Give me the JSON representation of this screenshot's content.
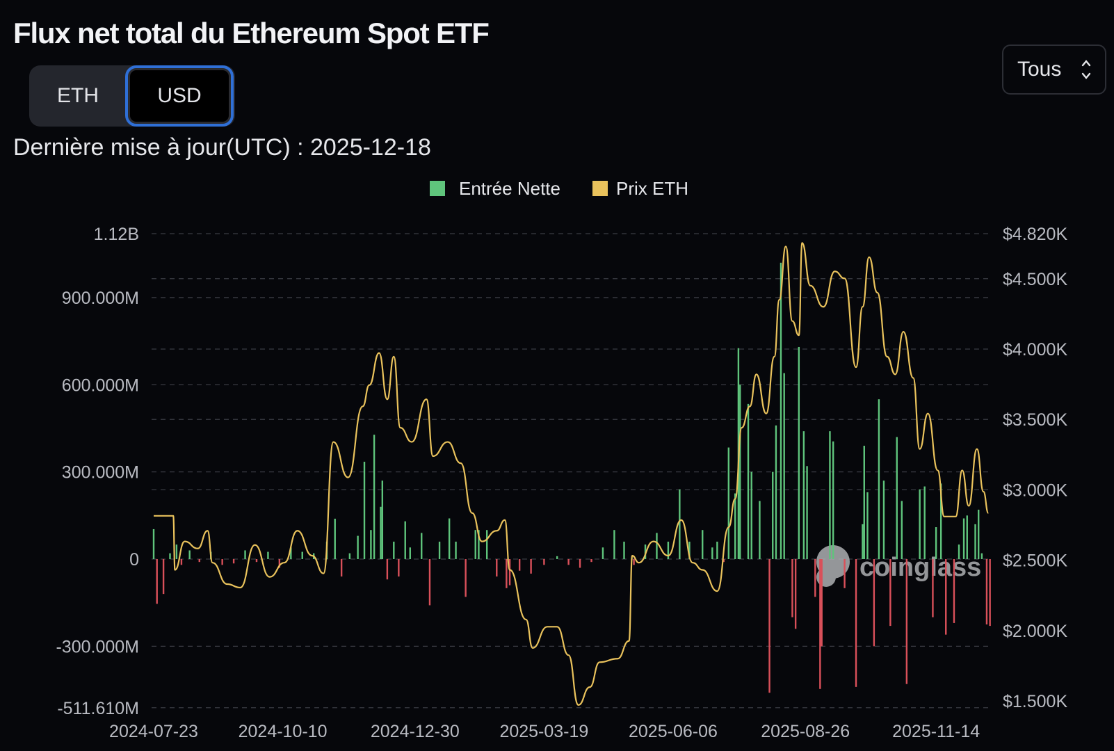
{
  "header": {
    "title": "Flux net total du Ethereum Spot ETF",
    "toggle": {
      "eth": "ETH",
      "usd": "USD",
      "selected": "USD"
    },
    "updated": "Dernière mise à jour(UTC) : 2025-12-18",
    "range_select": "Tous"
  },
  "watermark": "coinglass",
  "colors": {
    "inflow": "#5fc47c",
    "outflow": "#d9505a",
    "price": "#e9c25c",
    "background": "#06070b",
    "selected_border": "#2f6fd6"
  },
  "chart_data": {
    "type": "bar+line",
    "legend": {
      "position": "top-center",
      "items": [
        "Entrée Nette",
        "Prix ETH"
      ]
    },
    "grid": true,
    "left_axis": {
      "ticks": [
        "1.12B",
        "900.000M",
        "600.000M",
        "300.000M",
        "0",
        "-300.000M",
        "-511.610M"
      ],
      "tick_values": [
        1120,
        900,
        600,
        300,
        0,
        -300,
        -511.61
      ],
      "unit": "M USD",
      "range": [
        -511.61,
        1120
      ]
    },
    "right_axis": {
      "ticks": [
        "$4.820K",
        "$4.500K",
        "$4.000K",
        "$3.500K",
        "$3.000K",
        "$2.500K",
        "$2.000K",
        "$1.500K"
      ],
      "tick_values": [
        4820,
        4500,
        4000,
        3500,
        3000,
        2500,
        2000,
        1500
      ],
      "range": [
        1500,
        4820
      ]
    },
    "x_ticks": [
      "2024-07-23",
      "2024-10-10",
      "2024-12-30",
      "2025-03-19",
      "2025-06-06",
      "2025-08-26",
      "2025-11-14"
    ],
    "x_range": [
      "2024-07-23",
      "2025-12-18"
    ],
    "series": [
      {
        "name": "Entrée Nette",
        "type": "bar",
        "unit": "M USD",
        "points": [
          [
            "2024-07-23",
            103
          ],
          [
            "2024-07-25",
            -154
          ],
          [
            "2024-07-29",
            -120
          ],
          [
            "2024-08-02",
            20
          ],
          [
            "2024-08-06",
            50
          ],
          [
            "2024-08-09",
            -20
          ],
          [
            "2024-08-14",
            30
          ],
          [
            "2024-08-20",
            -10
          ],
          [
            "2024-08-27",
            25
          ],
          [
            "2024-09-03",
            -20
          ],
          [
            "2024-09-10",
            -15
          ],
          [
            "2024-09-17",
            30
          ],
          [
            "2024-09-24",
            -10
          ],
          [
            "2024-10-01",
            25
          ],
          [
            "2024-10-08",
            -30
          ],
          [
            "2024-10-15",
            40
          ],
          [
            "2024-10-22",
            25
          ],
          [
            "2024-10-29",
            20
          ],
          [
            "2024-11-06",
            60
          ],
          [
            "2024-11-11",
            139
          ],
          [
            "2024-11-15",
            -60
          ],
          [
            "2024-11-20",
            20
          ],
          [
            "2024-11-25",
            80
          ],
          [
            "2024-11-29",
            335
          ],
          [
            "2024-12-03",
            100
          ],
          [
            "2024-12-05",
            428
          ],
          [
            "2024-12-09",
            180
          ],
          [
            "2024-12-10",
            270
          ],
          [
            "2024-12-13",
            -70
          ],
          [
            "2024-12-17",
            60
          ],
          [
            "2024-12-20",
            -60
          ],
          [
            "2024-12-24",
            130
          ],
          [
            "2024-12-27",
            40
          ],
          [
            "2025-01-03",
            90
          ],
          [
            "2025-01-08",
            -159
          ],
          [
            "2025-01-14",
            60
          ],
          [
            "2025-01-20",
            140
          ],
          [
            "2025-01-24",
            60
          ],
          [
            "2025-01-30",
            -130
          ],
          [
            "2025-02-05",
            100
          ],
          [
            "2025-02-07",
            100
          ],
          [
            "2025-02-12",
            100
          ],
          [
            "2025-02-18",
            -60
          ],
          [
            "2025-02-24",
            -100
          ],
          [
            "2025-02-26",
            -90
          ],
          [
            "2025-03-04",
            -40
          ],
          [
            "2025-03-11",
            -50
          ],
          [
            "2025-03-19",
            -20
          ],
          [
            "2025-03-27",
            10
          ],
          [
            "2025-04-03",
            -20
          ],
          [
            "2025-04-10",
            -30
          ],
          [
            "2025-04-17",
            -10
          ],
          [
            "2025-04-24",
            40
          ],
          [
            "2025-05-01",
            100
          ],
          [
            "2025-05-07",
            60
          ],
          [
            "2025-05-13",
            -20
          ],
          [
            "2025-05-20",
            50
          ],
          [
            "2025-05-27",
            90
          ],
          [
            "2025-06-03",
            60
          ],
          [
            "2025-06-10",
            240
          ],
          [
            "2025-06-16",
            60
          ],
          [
            "2025-06-24",
            100
          ],
          [
            "2025-06-30",
            40
          ],
          [
            "2025-07-03",
            60
          ],
          [
            "2025-07-07",
            -10
          ],
          [
            "2025-07-10",
            384
          ],
          [
            "2025-07-14",
            226
          ],
          [
            "2025-07-16",
            726
          ],
          [
            "2025-07-17",
            600
          ],
          [
            "2025-07-22",
            534
          ],
          [
            "2025-07-24",
            300
          ],
          [
            "2025-07-29",
            200
          ],
          [
            "2025-08-04",
            -460
          ],
          [
            "2025-08-06",
            300
          ],
          [
            "2025-08-08",
            460
          ],
          [
            "2025-08-11",
            1020
          ],
          [
            "2025-08-13",
            640
          ],
          [
            "2025-08-18",
            -200
          ],
          [
            "2025-08-20",
            -240
          ],
          [
            "2025-08-22",
            730
          ],
          [
            "2025-08-25",
            440
          ],
          [
            "2025-08-27",
            320
          ],
          [
            "2025-09-01",
            -130
          ],
          [
            "2025-09-04",
            -447
          ],
          [
            "2025-09-05",
            -300
          ],
          [
            "2025-09-10",
            440
          ],
          [
            "2025-09-12",
            405
          ],
          [
            "2025-09-19",
            -100
          ],
          [
            "2025-09-26",
            -440
          ],
          [
            "2025-09-30",
            120
          ],
          [
            "2025-10-01",
            390
          ],
          [
            "2025-10-03",
            230
          ],
          [
            "2025-10-07",
            -300
          ],
          [
            "2025-10-10",
            550
          ],
          [
            "2025-10-13",
            270
          ],
          [
            "2025-10-17",
            -230
          ],
          [
            "2025-10-21",
            420
          ],
          [
            "2025-10-24",
            200
          ],
          [
            "2025-10-27",
            -430
          ],
          [
            "2025-11-04",
            240
          ],
          [
            "2025-11-07",
            250
          ],
          [
            "2025-11-12",
            -200
          ],
          [
            "2025-11-14",
            110
          ],
          [
            "2025-11-17",
            260
          ],
          [
            "2025-11-20",
            -260
          ],
          [
            "2025-11-25",
            -220
          ],
          [
            "2025-11-28",
            50
          ],
          [
            "2025-12-01",
            140
          ],
          [
            "2025-12-03",
            150
          ],
          [
            "2025-12-08",
            120
          ],
          [
            "2025-12-10",
            170
          ],
          [
            "2025-12-12",
            20
          ],
          [
            "2025-12-15",
            -225
          ],
          [
            "2025-12-17",
            -230
          ]
        ]
      },
      {
        "name": "Prix ETH",
        "type": "line",
        "unit": "USD",
        "points": [
          [
            "2024-07-23",
            2815
          ],
          [
            "2024-08-04",
            2815
          ],
          [
            "2024-08-05",
            2431
          ],
          [
            "2024-08-11",
            2633
          ],
          [
            "2024-08-19",
            2583
          ],
          [
            "2024-08-25",
            2709
          ],
          [
            "2024-08-28",
            2482
          ],
          [
            "2024-09-06",
            2330
          ],
          [
            "2024-09-14",
            2305
          ],
          [
            "2024-09-23",
            2608
          ],
          [
            "2024-10-02",
            2381
          ],
          [
            "2024-10-11",
            2482
          ],
          [
            "2024-10-19",
            2709
          ],
          [
            "2024-10-28",
            2532
          ],
          [
            "2024-11-04",
            2406
          ],
          [
            "2024-11-10",
            3340
          ],
          [
            "2024-11-19",
            3088
          ],
          [
            "2024-11-28",
            3593
          ],
          [
            "2024-12-02",
            3744
          ],
          [
            "2024-12-08",
            3972
          ],
          [
            "2024-12-13",
            3643
          ],
          [
            "2024-12-17",
            3946
          ],
          [
            "2024-12-21",
            3441
          ],
          [
            "2024-12-28",
            3340
          ],
          [
            "2025-01-06",
            3643
          ],
          [
            "2025-01-10",
            3239
          ],
          [
            "2025-01-19",
            3340
          ],
          [
            "2025-01-27",
            3189
          ],
          [
            "2025-02-03",
            2835
          ],
          [
            "2025-02-09",
            2633
          ],
          [
            "2025-02-18",
            2709
          ],
          [
            "2025-02-23",
            2785
          ],
          [
            "2025-02-26",
            2431
          ],
          [
            "2025-03-08",
            2078
          ],
          [
            "2025-03-12",
            1876
          ],
          [
            "2025-03-21",
            2027
          ],
          [
            "2025-03-27",
            2027
          ],
          [
            "2025-04-03",
            1825
          ],
          [
            "2025-04-09",
            1471
          ],
          [
            "2025-04-16",
            1598
          ],
          [
            "2025-04-22",
            1775
          ],
          [
            "2025-05-03",
            1800
          ],
          [
            "2025-05-10",
            1926
          ],
          [
            "2025-05-12",
            2532
          ],
          [
            "2025-05-16",
            2482
          ],
          [
            "2025-05-25",
            2633
          ],
          [
            "2025-06-03",
            2532
          ],
          [
            "2025-06-11",
            2785
          ],
          [
            "2025-06-18",
            2482
          ],
          [
            "2025-06-24",
            2431
          ],
          [
            "2025-07-03",
            2280
          ],
          [
            "2025-07-10",
            2734
          ],
          [
            "2025-07-14",
            2936
          ],
          [
            "2025-07-18",
            3441
          ],
          [
            "2025-07-23",
            3593
          ],
          [
            "2025-07-27",
            3820
          ],
          [
            "2025-08-02",
            3542
          ],
          [
            "2025-08-07",
            3946
          ],
          [
            "2025-08-10",
            4350
          ],
          [
            "2025-08-14",
            4729
          ],
          [
            "2025-08-18",
            4199
          ],
          [
            "2025-08-22",
            4098
          ],
          [
            "2025-08-24",
            4754
          ],
          [
            "2025-08-29",
            4451
          ],
          [
            "2025-09-06",
            4300
          ],
          [
            "2025-09-13",
            4552
          ],
          [
            "2025-09-19",
            4502
          ],
          [
            "2025-09-26",
            3871
          ],
          [
            "2025-09-30",
            4300
          ],
          [
            "2025-10-04",
            4653
          ],
          [
            "2025-10-09",
            4401
          ],
          [
            "2025-10-15",
            3946
          ],
          [
            "2025-10-20",
            3820
          ],
          [
            "2025-10-25",
            4123
          ],
          [
            "2025-10-31",
            3795
          ],
          [
            "2025-11-04",
            3290
          ],
          [
            "2025-11-09",
            3542
          ],
          [
            "2025-11-15",
            3138
          ],
          [
            "2025-11-19",
            2810
          ],
          [
            "2025-11-26",
            2810
          ],
          [
            "2025-11-30",
            3138
          ],
          [
            "2025-12-04",
            2886
          ],
          [
            "2025-12-09",
            3290
          ],
          [
            "2025-12-13",
            2987
          ],
          [
            "2025-12-16",
            2835
          ]
        ]
      }
    ]
  }
}
